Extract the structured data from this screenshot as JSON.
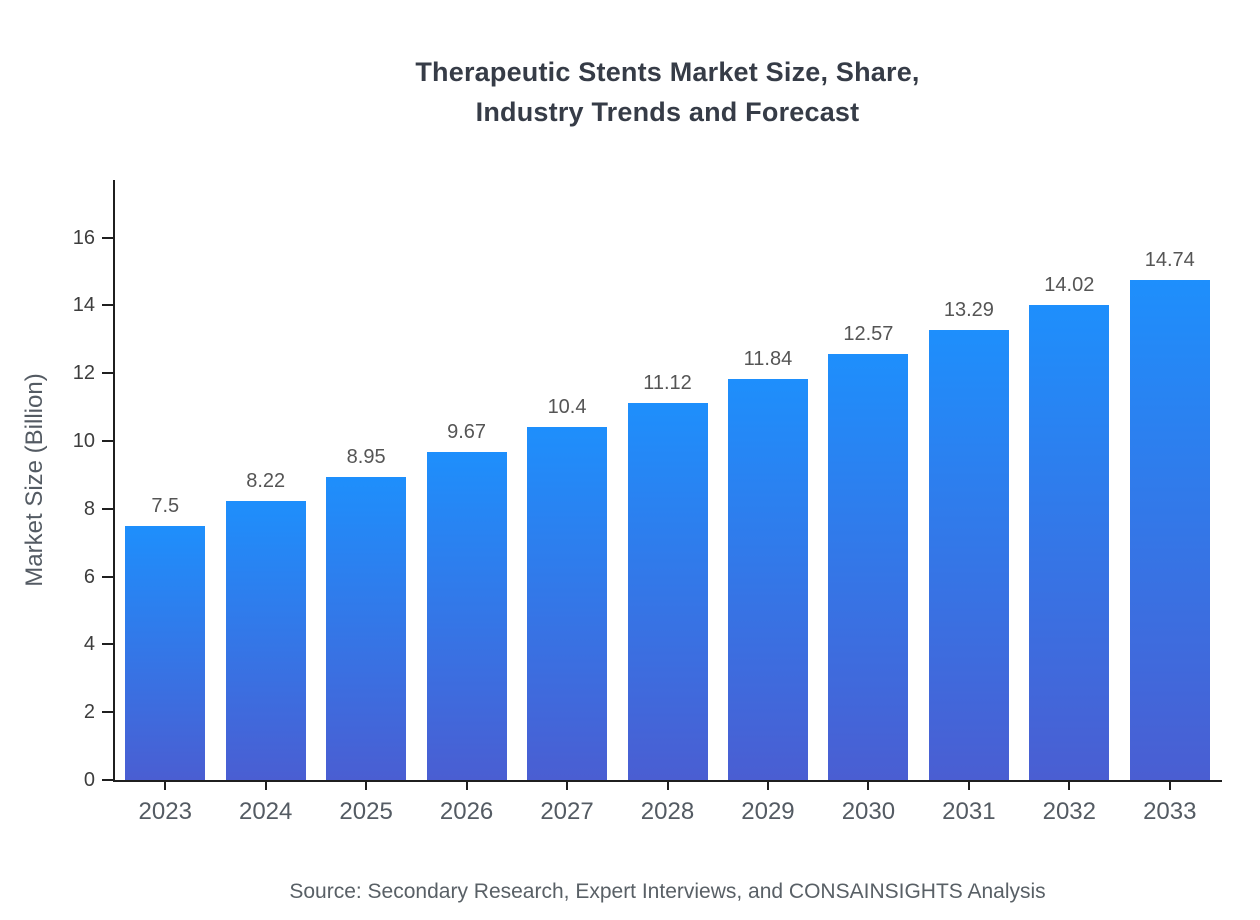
{
  "title": {
    "lines": [
      "Therapeutic Stents Market Size, Share,",
      "Industry Trends and Forecast"
    ]
  },
  "y_axis_title": "Market Size (Billion)",
  "source_text": "Source: Secondary Research, Expert Interviews, and CONSAINSIGHTS Analysis",
  "colors": {
    "bar_top": "#1E8FFC",
    "bar_bottom": "#4A5ED2",
    "axis": "#1F1F1F",
    "title_text": "#363C47",
    "tick_text": "#3D3D3D",
    "label_text": "#545B63",
    "value_text": "#555555",
    "source_text": "#596066"
  },
  "chart_data": {
    "type": "bar",
    "title": "Therapeutic Stents Market Size, Share, Industry Trends and Forecast",
    "categories": [
      "2023",
      "2024",
      "2025",
      "2026",
      "2027",
      "2028",
      "2029",
      "2030",
      "2031",
      "2032",
      "2033"
    ],
    "values": [
      7.5,
      8.22,
      8.95,
      9.67,
      10.4,
      11.12,
      11.84,
      12.57,
      13.29,
      14.02,
      14.74
    ],
    "xlabel": "",
    "ylabel": "Market Size (Billion)",
    "ylim": [
      0,
      17.7
    ],
    "yticks": [
      0,
      2,
      4,
      6,
      8,
      10,
      12,
      14,
      16
    ],
    "grid": false,
    "legend": null,
    "bar_value_labels": true,
    "source": "Source: Secondary Research, Expert Interviews, and CONSAINSIGHTS Analysis"
  }
}
